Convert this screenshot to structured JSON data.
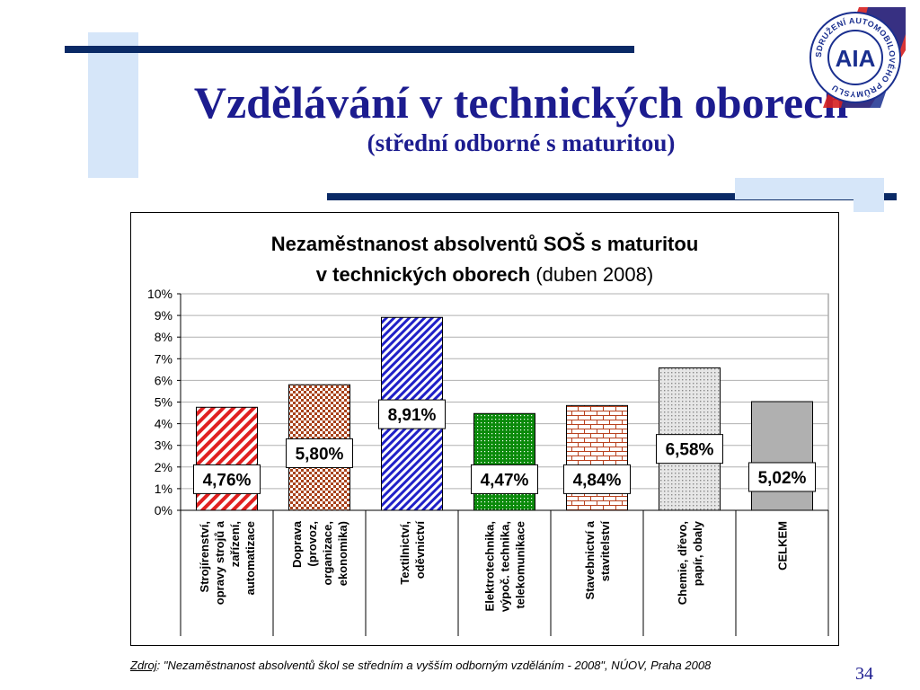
{
  "slide": {
    "title": "Vzdělávání v technických oborech",
    "subtitle": "(střední odborné s maturitou)",
    "page_number": "34",
    "source_label": "Zdroj",
    "source_text": ": \"Nezaměstnanost absolventů škol se středním a vyšším odborným vzděláním - 2008\", NÚOV, Praha 2008"
  },
  "logo": {
    "text": "AIA",
    "ring_text": "SDRUŽENÍ AUTOMOBILOVÉHO PRŮMYSLU",
    "colors": {
      "blue": "#1a2f8f",
      "red": "#d62020"
    }
  },
  "chart_data": {
    "type": "bar",
    "title_line1": "Nezaměstnanost absolventů SOŠ s maturitou",
    "title_line2_bold": "v technických oborech",
    "title_line2_normal": " (duben 2008)",
    "ylim": [
      0,
      10
    ],
    "yticks": [
      "0%",
      "1%",
      "2%",
      "3%",
      "4%",
      "5%",
      "6%",
      "7%",
      "8%",
      "9%",
      "10%"
    ],
    "grid": true,
    "categories": [
      [
        "Strojírenství,",
        "opravy strojů a",
        "zařízení,",
        "automatizace"
      ],
      [
        "Doprava",
        "(provoz,",
        "organizace,",
        "ekonomika)"
      ],
      [
        "Textilnictví,",
        "oděvnictví"
      ],
      [
        "Elektrotechnika,",
        "výpoč. technika,",
        "telekomunikace"
      ],
      [
        "Stavebnictví a",
        "stavitelství"
      ],
      [
        "Chemie, dřevo,",
        "papír, obaly"
      ],
      [
        "CELKEM"
      ]
    ],
    "values": [
      4.76,
      5.8,
      8.91,
      4.47,
      4.84,
      6.58,
      5.02
    ],
    "value_labels": [
      "4,76%",
      "5,80%",
      "8,91%",
      "4,47%",
      "4,84%",
      "6,58%",
      "5,02%"
    ],
    "colors": [
      "#e02020",
      "#a8421a",
      "#2020c8",
      "#0a8a0a",
      "#b8411e",
      "#a0a0a0",
      "#b0b0b0"
    ],
    "patterns": [
      "diag-red",
      "check-brown",
      "diag-blue",
      "dots-green",
      "brick",
      "dots-grey",
      "solid-grey"
    ]
  }
}
